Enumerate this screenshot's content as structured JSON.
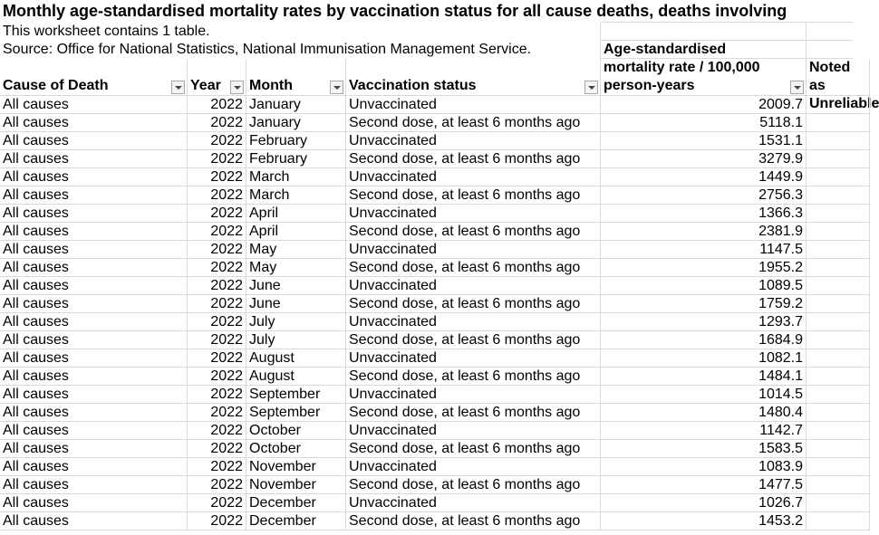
{
  "header": {
    "title": "Monthly age-standardised mortality rates by vaccination status for all cause deaths, deaths involving",
    "note": "This worksheet contains 1 table.",
    "source": "Source: Office for National Statistics, National Immunisation Management Service."
  },
  "table": {
    "columns": [
      "Cause of Death",
      "Year",
      "Month",
      "Vaccination status",
      "Age-standardised mortality rate / 100,000 person-years",
      "Noted as Unreliable"
    ],
    "rows": [
      [
        "All causes",
        2022,
        "January",
        "Unvaccinated",
        2009.7
      ],
      [
        "All causes",
        2022,
        "January",
        "Second dose, at least 6 months ago",
        5118.1
      ],
      [
        "All causes",
        2022,
        "February",
        "Unvaccinated",
        1531.1
      ],
      [
        "All causes",
        2022,
        "February",
        "Second dose, at least 6 months ago",
        3279.9
      ],
      [
        "All causes",
        2022,
        "March",
        "Unvaccinated",
        1449.9
      ],
      [
        "All causes",
        2022,
        "March",
        "Second dose, at least 6 months ago",
        2756.3
      ],
      [
        "All causes",
        2022,
        "April",
        "Unvaccinated",
        1366.3
      ],
      [
        "All causes",
        2022,
        "April",
        "Second dose, at least 6 months ago",
        2381.9
      ],
      [
        "All causes",
        2022,
        "May",
        "Unvaccinated",
        1147.5
      ],
      [
        "All causes",
        2022,
        "May",
        "Second dose, at least 6 months ago",
        1955.2
      ],
      [
        "All causes",
        2022,
        "June",
        "Unvaccinated",
        1089.5
      ],
      [
        "All causes",
        2022,
        "June",
        "Second dose, at least 6 months ago",
        1759.2
      ],
      [
        "All causes",
        2022,
        "July",
        "Unvaccinated",
        1293.7
      ],
      [
        "All causes",
        2022,
        "July",
        "Second dose, at least 6 months ago",
        1684.9
      ],
      [
        "All causes",
        2022,
        "August",
        "Unvaccinated",
        1082.1
      ],
      [
        "All causes",
        2022,
        "August",
        "Second dose, at least 6 months ago",
        1484.1
      ],
      [
        "All causes",
        2022,
        "September",
        "Unvaccinated",
        1014.5
      ],
      [
        "All causes",
        2022,
        "September",
        "Second dose, at least 6 months ago",
        1480.4
      ],
      [
        "All causes",
        2022,
        "October",
        "Unvaccinated",
        1142.7
      ],
      [
        "All causes",
        2022,
        "October",
        "Second dose, at least 6 months ago",
        1583.5
      ],
      [
        "All causes",
        2022,
        "November",
        "Unvaccinated",
        1083.9
      ],
      [
        "All causes",
        2022,
        "November",
        "Second dose, at least 6 months ago",
        1477.5
      ],
      [
        "All causes",
        2022,
        "December",
        "Unvaccinated",
        1026.7
      ],
      [
        "All causes",
        2022,
        "December",
        "Second dose, at least 6 months ago",
        1453.2
      ]
    ]
  }
}
